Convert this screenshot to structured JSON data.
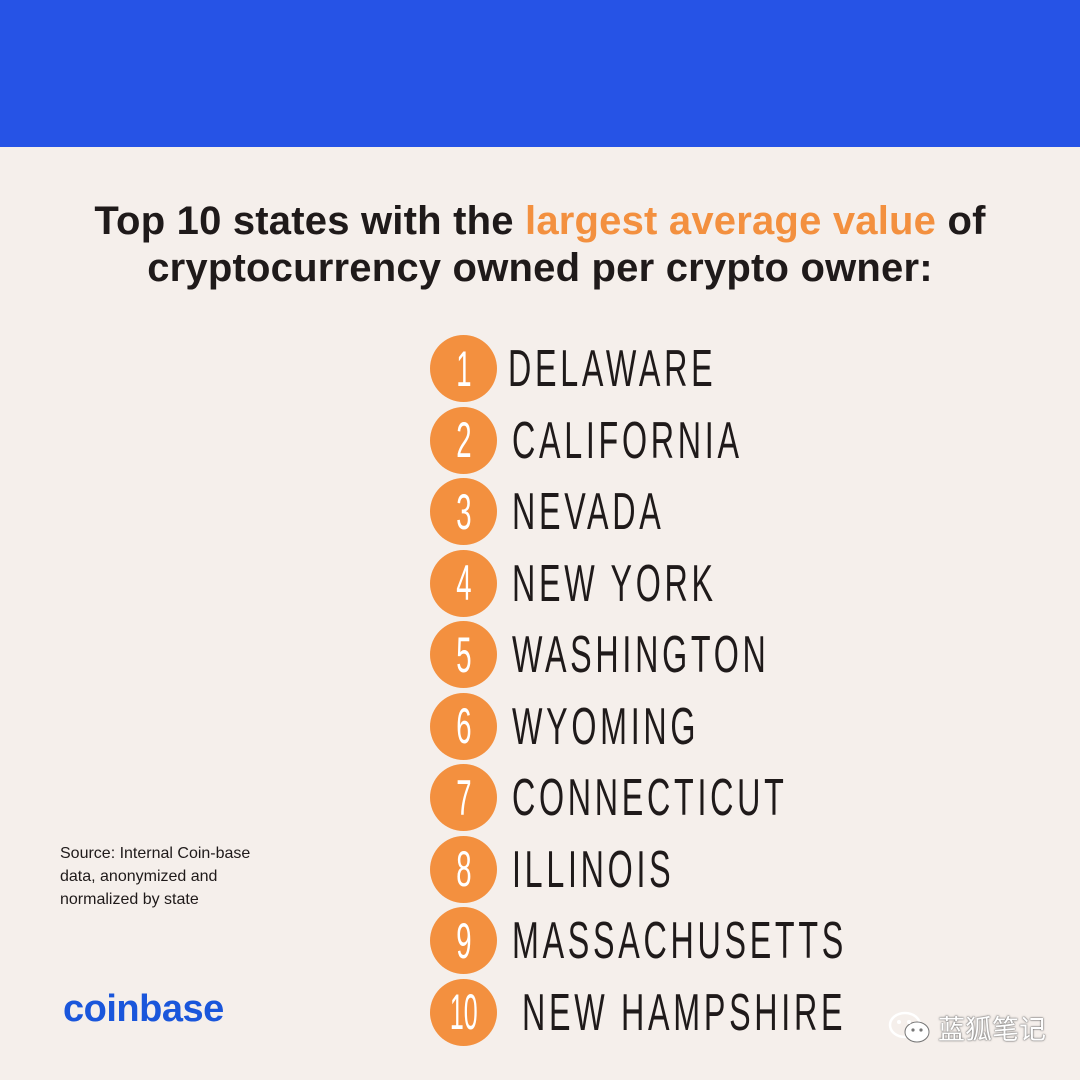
{
  "headline": {
    "prefix": "Top 10 states with the ",
    "accent": "largest average value",
    "suffix": " of cryptocurrency owned per crypto owner:"
  },
  "ranking": [
    {
      "rank": "1",
      "state": "DELAWARE"
    },
    {
      "rank": "2",
      "state": "CALIFORNIA"
    },
    {
      "rank": "3",
      "state": "NEVADA"
    },
    {
      "rank": "4",
      "state": "NEW YORK"
    },
    {
      "rank": "5",
      "state": "WASHINGTON"
    },
    {
      "rank": "6",
      "state": "WYOMING"
    },
    {
      "rank": "7",
      "state": "CONNECTICUT"
    },
    {
      "rank": "8",
      "state": "ILLINOIS"
    },
    {
      "rank": "9",
      "state": "MASSACHUSETTS"
    },
    {
      "rank": "10",
      "state": "NEW HAMPSHIRE"
    }
  ],
  "source_note": "Source: Internal Coin-base data, anonymized and normalized by state",
  "brand_logo": "coinbase",
  "watermark": {
    "icon": "wechat-icon",
    "text": "蓝狐笔记"
  },
  "colors": {
    "banner": "#2653e6",
    "background": "#f5efeb",
    "accent": "#f3903f",
    "text": "#1f1a1a",
    "brand": "#1a56db"
  }
}
